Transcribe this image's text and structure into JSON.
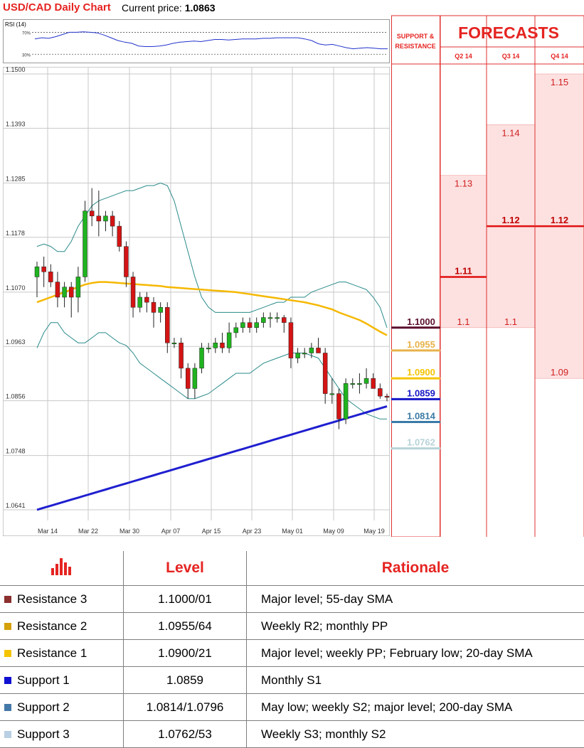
{
  "header": {
    "title": "USD/CAD Daily Chart",
    "price_label": "Current price:",
    "price_value": "1.0863"
  },
  "rsi": {
    "label": "RSI (14)",
    "levels": [
      "70%",
      "30%"
    ],
    "values": [
      58,
      60,
      59,
      62,
      66,
      70,
      70,
      71,
      70,
      69,
      65,
      60,
      55,
      52,
      50,
      45,
      44,
      44,
      45,
      47,
      50,
      52,
      53,
      54,
      53,
      55,
      57,
      57,
      56,
      57,
      58,
      58,
      58,
      59,
      59,
      60,
      60,
      60,
      60,
      58,
      55,
      49,
      47,
      48,
      45,
      42,
      40,
      41,
      42,
      41,
      40,
      40
    ]
  },
  "chart_data": {
    "type": "candlestick",
    "y_ticks": [
      "1.1500",
      "1.1393",
      "1.1285",
      "1.1178",
      "1.1070",
      "1.0963",
      "1.0856",
      "1.0748",
      "1.0641"
    ],
    "ylim": [
      1.0641,
      1.15
    ],
    "x_ticks": [
      "Mar 14",
      "Mar 22",
      "Mar 30",
      "Apr 07",
      "Apr 15",
      "Apr 23",
      "May 01",
      "May 09",
      "May 19"
    ],
    "candles": [
      [
        1.11,
        1.113,
        1.106,
        1.112
      ],
      [
        1.112,
        1.114,
        1.108,
        1.111
      ],
      [
        1.111,
        1.1125,
        1.108,
        1.109
      ],
      [
        1.109,
        1.111,
        1.104,
        1.106
      ],
      [
        1.106,
        1.109,
        1.104,
        1.108
      ],
      [
        1.108,
        1.109,
        1.102,
        1.106
      ],
      [
        1.106,
        1.112,
        1.103,
        1.11
      ],
      [
        1.11,
        1.125,
        1.109,
        1.123
      ],
      [
        1.123,
        1.1275,
        1.12,
        1.122
      ],
      [
        1.122,
        1.127,
        1.118,
        1.121
      ],
      [
        1.121,
        1.123,
        1.119,
        1.122
      ],
      [
        1.122,
        1.123,
        1.118,
        1.12
      ],
      [
        1.12,
        1.121,
        1.115,
        1.116
      ],
      [
        1.116,
        1.117,
        1.108,
        1.11
      ],
      [
        1.11,
        1.111,
        1.102,
        1.104
      ],
      [
        1.104,
        1.107,
        1.103,
        1.106
      ],
      [
        1.106,
        1.107,
        1.103,
        1.105
      ],
      [
        1.105,
        1.106,
        1.1,
        1.103
      ],
      [
        1.103,
        1.105,
        1.101,
        1.104
      ],
      [
        1.104,
        1.105,
        1.095,
        1.097
      ],
      [
        1.097,
        1.098,
        1.096,
        1.097
      ],
      [
        1.097,
        1.098,
        1.09,
        1.092
      ],
      [
        1.092,
        1.093,
        1.086,
        1.088
      ],
      [
        1.088,
        1.093,
        1.086,
        1.092
      ],
      [
        1.092,
        1.097,
        1.091,
        1.096
      ],
      [
        1.096,
        1.097,
        1.095,
        1.096
      ],
      [
        1.096,
        1.098,
        1.095,
        1.097
      ],
      [
        1.097,
        1.099,
        1.095,
        1.096
      ],
      [
        1.096,
        1.101,
        1.095,
        1.099
      ],
      [
        1.099,
        1.101,
        1.098,
        1.1
      ],
      [
        1.1,
        1.102,
        1.099,
        1.101
      ],
      [
        1.101,
        1.102,
        1.099,
        1.1
      ],
      [
        1.1,
        1.102,
        1.099,
        1.101
      ],
      [
        1.101,
        1.103,
        1.1,
        1.102
      ],
      [
        1.102,
        1.103,
        1.1,
        1.102
      ],
      [
        1.102,
        1.103,
        1.101,
        1.102
      ],
      [
        1.102,
        1.1025,
        1.099,
        1.101
      ],
      [
        1.101,
        1.102,
        1.092,
        1.094
      ],
      [
        1.094,
        1.096,
        1.093,
        1.095
      ],
      [
        1.095,
        1.096,
        1.094,
        1.095
      ],
      [
        1.095,
        1.097,
        1.094,
        1.096
      ],
      [
        1.096,
        1.098,
        1.095,
        1.095
      ],
      [
        1.095,
        1.096,
        1.085,
        1.087
      ],
      [
        1.087,
        1.09,
        1.085,
        1.087
      ],
      [
        1.087,
        1.088,
        1.08,
        1.082
      ],
      [
        1.082,
        1.09,
        1.081,
        1.089
      ],
      [
        1.089,
        1.09,
        1.088,
        1.089
      ],
      [
        1.089,
        1.091,
        1.087,
        1.089
      ],
      [
        1.089,
        1.092,
        1.088,
        1.09
      ],
      [
        1.09,
        1.091,
        1.088,
        1.088
      ],
      [
        1.088,
        1.089,
        1.086,
        1.0865
      ],
      [
        1.0865,
        1.087,
        1.0855,
        1.0863
      ]
    ],
    "sma55": [
      1.105,
      1.1055,
      1.106,
      1.1065,
      1.107,
      1.1075,
      1.108,
      1.1085,
      1.1088,
      1.109,
      1.109,
      1.1089,
      1.1088,
      1.1087,
      1.1086,
      1.1085,
      1.1084,
      1.1083,
      1.1082,
      1.108,
      1.1079,
      1.1078,
      1.1077,
      1.1076,
      1.1075,
      1.1074,
      1.1073,
      1.1072,
      1.1071,
      1.107,
      1.1068,
      1.1066,
      1.1064,
      1.1062,
      1.106,
      1.1058,
      1.1056,
      1.1054,
      1.1052,
      1.105,
      1.1047,
      1.1044,
      1.104,
      1.1036,
      1.103,
      1.1025,
      1.102,
      1.1015,
      1.1008,
      1.1,
      1.0992,
      1.0985
    ],
    "sma200": [
      1.0641,
      1.0645,
      1.0649,
      1.0653,
      1.0657,
      1.0661,
      1.0665,
      1.0669,
      1.0673,
      1.0677,
      1.0681,
      1.0685,
      1.0689,
      1.0693,
      1.0697,
      1.0701,
      1.0705,
      1.0709,
      1.0713,
      1.0717,
      1.0721,
      1.0725,
      1.0729,
      1.0733,
      1.0737,
      1.0741,
      1.0745,
      1.0749,
      1.0753,
      1.0757,
      1.0761,
      1.0765,
      1.0769,
      1.0773,
      1.0777,
      1.0781,
      1.0785,
      1.0789,
      1.0793,
      1.0797,
      1.0801,
      1.0805,
      1.0809,
      1.0813,
      1.0817,
      1.0821,
      1.0825,
      1.0829,
      1.0833,
      1.0837,
      1.0841,
      1.0845
    ],
    "boll_upper": [
      1.116,
      1.1165,
      1.116,
      1.115,
      1.115,
      1.117,
      1.12,
      1.122,
      1.124,
      1.125,
      1.1255,
      1.126,
      1.1265,
      1.127,
      1.127,
      1.1275,
      1.128,
      1.128,
      1.1285,
      1.128,
      1.125,
      1.12,
      1.115,
      1.11,
      1.106,
      1.104,
      1.103,
      1.103,
      1.103,
      1.103,
      1.103,
      1.103,
      1.1035,
      1.104,
      1.1045,
      1.105,
      1.105,
      1.106,
      1.106,
      1.106,
      1.107,
      1.1075,
      1.108,
      1.1085,
      1.109,
      1.109,
      1.1085,
      1.108,
      1.1075,
      1.106,
      1.104,
      1.1
    ],
    "boll_lower": [
      1.096,
      1.099,
      1.101,
      1.101,
      1.099,
      1.098,
      1.097,
      1.097,
      1.098,
      1.099,
      1.099,
      1.098,
      1.097,
      1.0965,
      1.095,
      1.093,
      1.092,
      1.091,
      1.09,
      1.089,
      1.088,
      1.087,
      1.086,
      1.086,
      1.0865,
      1.087,
      1.088,
      1.089,
      1.09,
      1.091,
      1.091,
      1.091,
      1.092,
      1.093,
      1.0935,
      1.094,
      1.0945,
      1.095,
      1.095,
      1.095,
      1.0945,
      1.094,
      1.092,
      1.09,
      1.088,
      1.086,
      1.085,
      1.084,
      1.083,
      1.0825,
      1.082,
      1.082
    ]
  },
  "sr": {
    "header": "SUPPORT & RESISTANCE",
    "levels": [
      {
        "label": "1.1000",
        "value": 1.1,
        "color": "#5b0e2d"
      },
      {
        "label": "1.0955",
        "value": 1.0955,
        "color": "#e8b24a"
      },
      {
        "label": "1.0900",
        "value": 1.09,
        "color": "#f5c400"
      },
      {
        "label": "1.0859",
        "value": 1.0859,
        "color": "#1717c8"
      },
      {
        "label": "1.0814",
        "value": 1.0814,
        "color": "#3a7aa6"
      },
      {
        "label": "1.0762",
        "value": 1.0762,
        "color": "#b7d3d8"
      }
    ]
  },
  "forecasts": {
    "title": "FORECASTS",
    "columns": [
      {
        "quarter": "Q2 14",
        "labels": [
          {
            "text": "1.13",
            "value": 1.13,
            "bold": false
          },
          {
            "text": "1.11",
            "value": 1.11,
            "bold": true
          },
          {
            "text": "1.1",
            "value": 1.1,
            "bold": false
          }
        ],
        "band": [
          1.1,
          1.13
        ]
      },
      {
        "quarter": "Q3 14",
        "labels": [
          {
            "text": "1.14",
            "value": 1.14,
            "bold": false
          },
          {
            "text": "1.12",
            "value": 1.12,
            "bold": true
          },
          {
            "text": "1.1",
            "value": 1.1,
            "bold": false
          }
        ],
        "band": [
          1.1,
          1.14
        ]
      },
      {
        "quarter": "Q4 14",
        "labels": [
          {
            "text": "1.15",
            "value": 1.15,
            "bold": false
          },
          {
            "text": "1.12",
            "value": 1.12,
            "bold": true
          },
          {
            "text": "1.09",
            "value": 1.09,
            "bold": false
          }
        ],
        "band": [
          1.09,
          1.15
        ]
      }
    ]
  },
  "table": {
    "headers": [
      "Level",
      "Rationale"
    ],
    "rows": [
      {
        "name": "Resistance 3",
        "color": "#8b2f2f",
        "level": "1.1000/01",
        "rationale": "Major level; 55-day SMA"
      },
      {
        "name": "Resistance 2",
        "color": "#d4a10a",
        "level": "1.0955/64",
        "rationale": "Weekly R2; monthly PP"
      },
      {
        "name": "Resistance 1",
        "color": "#f5c400",
        "level": "1.0900/21",
        "rationale": "Major level; weekly PP; February low; 20-day SMA"
      },
      {
        "name": "Support 1",
        "color": "#1010d0",
        "level": "1.0859",
        "rationale": "Monthly S1"
      },
      {
        "name": "Support 2",
        "color": "#4478a8",
        "level": "1.0814/1.0796",
        "rationale": "May low; weekly S2; major level; 200-day SMA"
      },
      {
        "name": "Support 3",
        "color": "#b9cfe3",
        "level": "1.0762/53",
        "rationale": "Weekly S3; monthly S2"
      }
    ]
  }
}
